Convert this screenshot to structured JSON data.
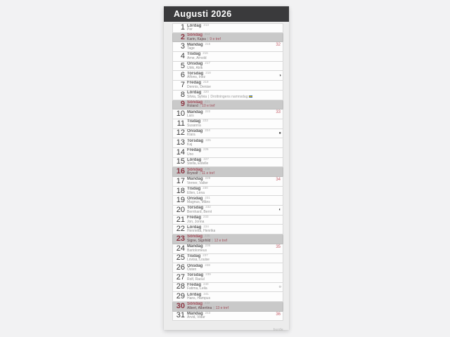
{
  "header": {
    "title": "Augusti 2026"
  },
  "footer": {
    "brand": "burde"
  },
  "misc": {
    "note_separator": "|"
  },
  "days": [
    {
      "date": 1,
      "weekday": "Lördag",
      "day_of_year": 213,
      "names": "Per"
    },
    {
      "date": 2,
      "weekday": "Söndag",
      "day_of_year": 214,
      "names": "Karin, Kajsa",
      "note": "9 e tref"
    },
    {
      "date": 3,
      "weekday": "Måndag",
      "day_of_year": 215,
      "names": "Tage",
      "week": "32"
    },
    {
      "date": 4,
      "weekday": "Tisdag",
      "day_of_year": 216,
      "names": "Arne, Arnold"
    },
    {
      "date": 5,
      "weekday": "Onsdag",
      "day_of_year": 217,
      "names": "Ulrik, Alrik"
    },
    {
      "date": 6,
      "weekday": "Torsdag",
      "day_of_year": 218,
      "names": "Alfons, Inez",
      "moon": "◑",
      "moon_name": "last-quarter-moon-icon"
    },
    {
      "date": 7,
      "weekday": "Fredag",
      "day_of_year": 219,
      "names": "Dennis, Denise"
    },
    {
      "date": 8,
      "weekday": "Lördag",
      "day_of_year": 220,
      "names": "Silvia, Sylvia",
      "note": "Drottningens namnsdag",
      "flag": true
    },
    {
      "date": 9,
      "weekday": "Söndag",
      "day_of_year": 221,
      "names": "Roland",
      "note": "10 e tref"
    },
    {
      "date": 10,
      "weekday": "Måndag",
      "day_of_year": 222,
      "names": "Lars",
      "week": "33"
    },
    {
      "date": 11,
      "weekday": "Tisdag",
      "day_of_year": 223,
      "names": "Susanna"
    },
    {
      "date": 12,
      "weekday": "Onsdag",
      "day_of_year": 224,
      "names": "Klara",
      "moon": "●",
      "moon_name": "new-moon-icon"
    },
    {
      "date": 13,
      "weekday": "Torsdag",
      "day_of_year": 225,
      "names": "Kaj"
    },
    {
      "date": 14,
      "weekday": "Fredag",
      "day_of_year": 226,
      "names": "Uno"
    },
    {
      "date": 15,
      "weekday": "Lördag",
      "day_of_year": 227,
      "names": "Stella, Estelle"
    },
    {
      "date": 16,
      "weekday": "Söndag",
      "day_of_year": 228,
      "names": "Brynolf",
      "note": "11 e tref"
    },
    {
      "date": 17,
      "weekday": "Måndag",
      "day_of_year": 229,
      "names": "Verner, Valter",
      "week": "34"
    },
    {
      "date": 18,
      "weekday": "Tisdag",
      "day_of_year": 230,
      "names": "Ellen, Lena"
    },
    {
      "date": 19,
      "weekday": "Onsdag",
      "day_of_year": 231,
      "names": "Magnus, Måns"
    },
    {
      "date": 20,
      "weekday": "Torsdag",
      "day_of_year": 232,
      "names": "Bernhard, Bernt",
      "moon": "◐",
      "moon_name": "first-quarter-moon-icon"
    },
    {
      "date": 21,
      "weekday": "Fredag",
      "day_of_year": 233,
      "names": "Jon, Jonna"
    },
    {
      "date": 22,
      "weekday": "Lördag",
      "day_of_year": 234,
      "names": "Henrietta, Henrika"
    },
    {
      "date": 23,
      "weekday": "Söndag",
      "day_of_year": 235,
      "names": "Signe, Signhild",
      "note": "12 e tref"
    },
    {
      "date": 24,
      "weekday": "Måndag",
      "day_of_year": 236,
      "names": "Bartolomeus",
      "week": "35"
    },
    {
      "date": 25,
      "weekday": "Tisdag",
      "day_of_year": 237,
      "names": "Lovisa, Louise"
    },
    {
      "date": 26,
      "weekday": "Onsdag",
      "day_of_year": 238,
      "names": "Östen"
    },
    {
      "date": 27,
      "weekday": "Torsdag",
      "day_of_year": 239,
      "names": "Rolf, Raoul"
    },
    {
      "date": 28,
      "weekday": "Fredag",
      "day_of_year": 240,
      "names": "Fatima, Leila",
      "moon": "○",
      "moon_name": "full-moon-icon"
    },
    {
      "date": 29,
      "weekday": "Lördag",
      "day_of_year": 241,
      "names": "Hans, Hampus"
    },
    {
      "date": 30,
      "weekday": "Söndag",
      "day_of_year": 242,
      "names": "Albert, Albertina",
      "note": "13 e tref"
    },
    {
      "date": 31,
      "weekday": "Måndag",
      "day_of_year": 243,
      "names": "Arvid, Vidar",
      "week": "36"
    }
  ],
  "colors": {
    "header_bg": "#3a3a3c",
    "sunday_bg": "#c9c9c9",
    "sunday_red": "#8c3744",
    "week_number_red": "#c5606b",
    "page_bg": "#ececec"
  }
}
